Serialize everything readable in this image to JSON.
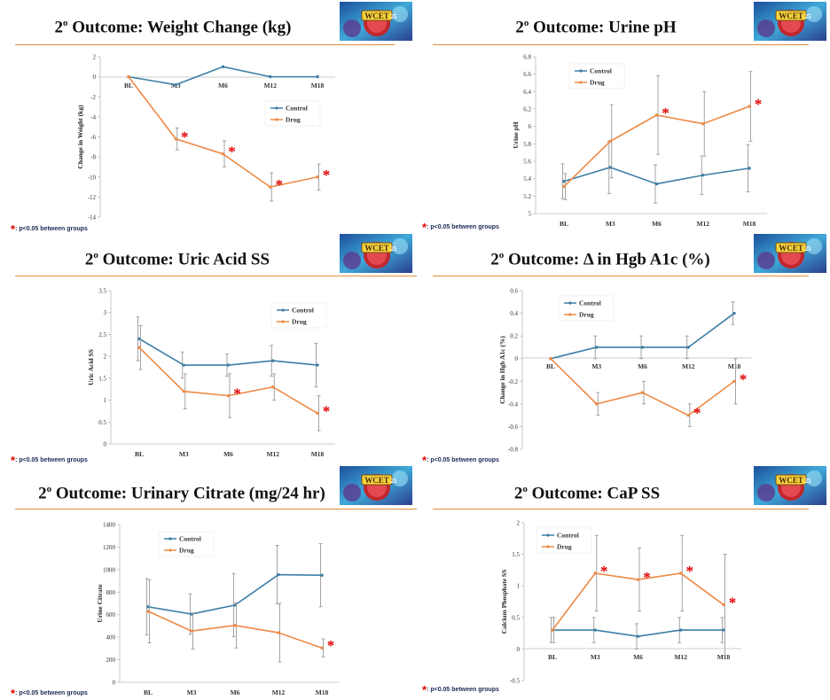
{
  "footnote": ": p<0.05 between groups",
  "colors": {
    "control": "#3d7ea6",
    "drug": "#ed8a45",
    "star": "#e00000",
    "rule": "#e38b3c"
  },
  "logo_text": "WCET 25",
  "charts": [
    {
      "title_prefix": "2",
      "title_sup": "o",
      "title": " Outcome: Weight Change (kg)",
      "chart_data": {
        "type": "line",
        "categories": [
          "BL",
          "M3",
          "M6",
          "M12",
          "M18"
        ],
        "ylabel": "Change in Weight (kg)",
        "ylim": [
          -14,
          2
        ],
        "yticks": [
          2,
          0,
          -2,
          -4,
          -6,
          -8,
          -10,
          -12,
          -14
        ],
        "legend": [
          "Control",
          "Drug"
        ],
        "series": [
          {
            "name": "Control",
            "values": [
              0,
              -0.8,
              1,
              0,
              0
            ],
            "err": [
              0,
              0,
              0,
              0,
              0
            ]
          },
          {
            "name": "Drug",
            "values": [
              0,
              -6.2,
              -7.7,
              -11,
              -10
            ],
            "err": [
              0,
              1.1,
              1.3,
              1.4,
              1.3
            ]
          }
        ],
        "significant": [
          false,
          true,
          true,
          true,
          true
        ]
      }
    },
    {
      "title_prefix": "2",
      "title_sup": "o",
      "title": " Outcome: Urine pH",
      "chart_data": {
        "type": "line",
        "categories": [
          "BL",
          "M3",
          "M6",
          "M12",
          "M18"
        ],
        "ylabel": "Urine pH",
        "ylim": [
          5,
          6.8
        ],
        "yticks": [
          6.8,
          6.6,
          6.4,
          6.2,
          6,
          5.8,
          5.6,
          5.4,
          5.2,
          5
        ],
        "legend": [
          "Control",
          "Drug"
        ],
        "series": [
          {
            "name": "Control",
            "values": [
              5.37,
              5.53,
              5.34,
              5.44,
              5.52
            ],
            "err": [
              0.2,
              0.3,
              0.22,
              0.22,
              0.27
            ]
          },
          {
            "name": "Drug",
            "values": [
              5.31,
              5.83,
              6.13,
              6.03,
              6.23
            ],
            "err": [
              0.15,
              0.42,
              0.45,
              0.37,
              0.4
            ]
          }
        ],
        "significant": [
          false,
          false,
          true,
          false,
          true
        ]
      }
    },
    {
      "title_prefix": "2",
      "title_sup": "o",
      "title": " Outcome: Uric Acid SS",
      "chart_data": {
        "type": "line",
        "categories": [
          "BL",
          "M3",
          "M6",
          "M12",
          "M18"
        ],
        "ylabel": "Uric Acid SS",
        "ylim": [
          0,
          3.5
        ],
        "yticks": [
          3.5,
          3,
          2.5,
          2,
          1.5,
          1,
          0.5,
          0
        ],
        "legend": [
          "Control",
          "Drug"
        ],
        "series": [
          {
            "name": "Control",
            "values": [
              2.4,
              1.8,
              1.8,
              1.9,
              1.8
            ],
            "err": [
              0.5,
              0.3,
              0.25,
              0.35,
              0.5
            ]
          },
          {
            "name": "Drug",
            "values": [
              2.2,
              1.2,
              1.1,
              1.3,
              0.7
            ],
            "err": [
              0.5,
              0.4,
              0.5,
              0.3,
              0.4
            ]
          }
        ],
        "significant": [
          false,
          false,
          true,
          false,
          true
        ]
      }
    },
    {
      "title_prefix": "2",
      "title_sup": "o",
      "title": " Outcome: Δ in Hgb A1c (%)",
      "chart_data": {
        "type": "line",
        "categories": [
          "BL",
          "M3",
          "M6",
          "M12",
          "M18"
        ],
        "ylabel": "Change in Hgb A1c (%)",
        "ylim": [
          -0.8,
          0.6
        ],
        "yticks": [
          0.6,
          0.4,
          0.2,
          0,
          -0.2,
          -0.4,
          -0.6,
          -0.8
        ],
        "legend": [
          "Control",
          "Drug"
        ],
        "series": [
          {
            "name": "Control",
            "values": [
              0,
              0.1,
              0.1,
              0.1,
              0.4
            ],
            "err": [
              0,
              0.1,
              0.1,
              0.1,
              0.1
            ]
          },
          {
            "name": "Drug",
            "values": [
              0,
              -0.4,
              -0.3,
              -0.5,
              -0.2
            ],
            "err": [
              0,
              0.1,
              0.1,
              0.1,
              0.2
            ]
          }
        ],
        "significant": [
          false,
          false,
          false,
          true,
          true
        ]
      }
    },
    {
      "title_prefix": "2",
      "title_sup": "o",
      "title": " Outcome: Urinary Citrate (mg/24 hr)",
      "chart_data": {
        "type": "line",
        "categories": [
          "BL",
          "M3",
          "M6",
          "M12",
          "M18"
        ],
        "ylabel": "Urine Citrate",
        "ylim": [
          0,
          1400
        ],
        "yticks": [
          1400,
          1200,
          1000,
          800,
          600,
          400,
          200,
          0
        ],
        "legend": [
          "Control",
          "Drug"
        ],
        "series": [
          {
            "name": "Control",
            "values": [
              670,
              605,
              685,
              955,
              950
            ],
            "err": [
              250,
              180,
              280,
              260,
              280
            ]
          },
          {
            "name": "Drug",
            "values": [
              630,
              455,
              505,
              440,
              305
            ],
            "err": [
              280,
              160,
              200,
              260,
              80
            ]
          }
        ],
        "significant": [
          false,
          false,
          false,
          false,
          true
        ]
      }
    },
    {
      "title_prefix": "2",
      "title_sup": "o",
      "title": " Outcome: CaP SS",
      "chart_data": {
        "type": "line",
        "categories": [
          "BL",
          "M3",
          "M6",
          "M12",
          "M18"
        ],
        "ylabel": "Calcium Phosphate SS",
        "ylim": [
          -0.5,
          2
        ],
        "yticks": [
          2,
          1.5,
          1,
          0.5,
          0,
          -0.5
        ],
        "legend": [
          "Control",
          "Drug"
        ],
        "series": [
          {
            "name": "Control",
            "values": [
              0.3,
              0.3,
              0.2,
              0.3,
              0.3
            ],
            "err": [
              0.2,
              0.2,
              0.2,
              0.2,
              0.2
            ]
          },
          {
            "name": "Drug",
            "values": [
              0.3,
              1.2,
              1.1,
              1.2,
              0.7
            ],
            "err": [
              0.2,
              0.6,
              0.5,
              0.6,
              0.8
            ]
          }
        ],
        "significant": [
          false,
          true,
          true,
          true,
          true
        ]
      }
    }
  ]
}
